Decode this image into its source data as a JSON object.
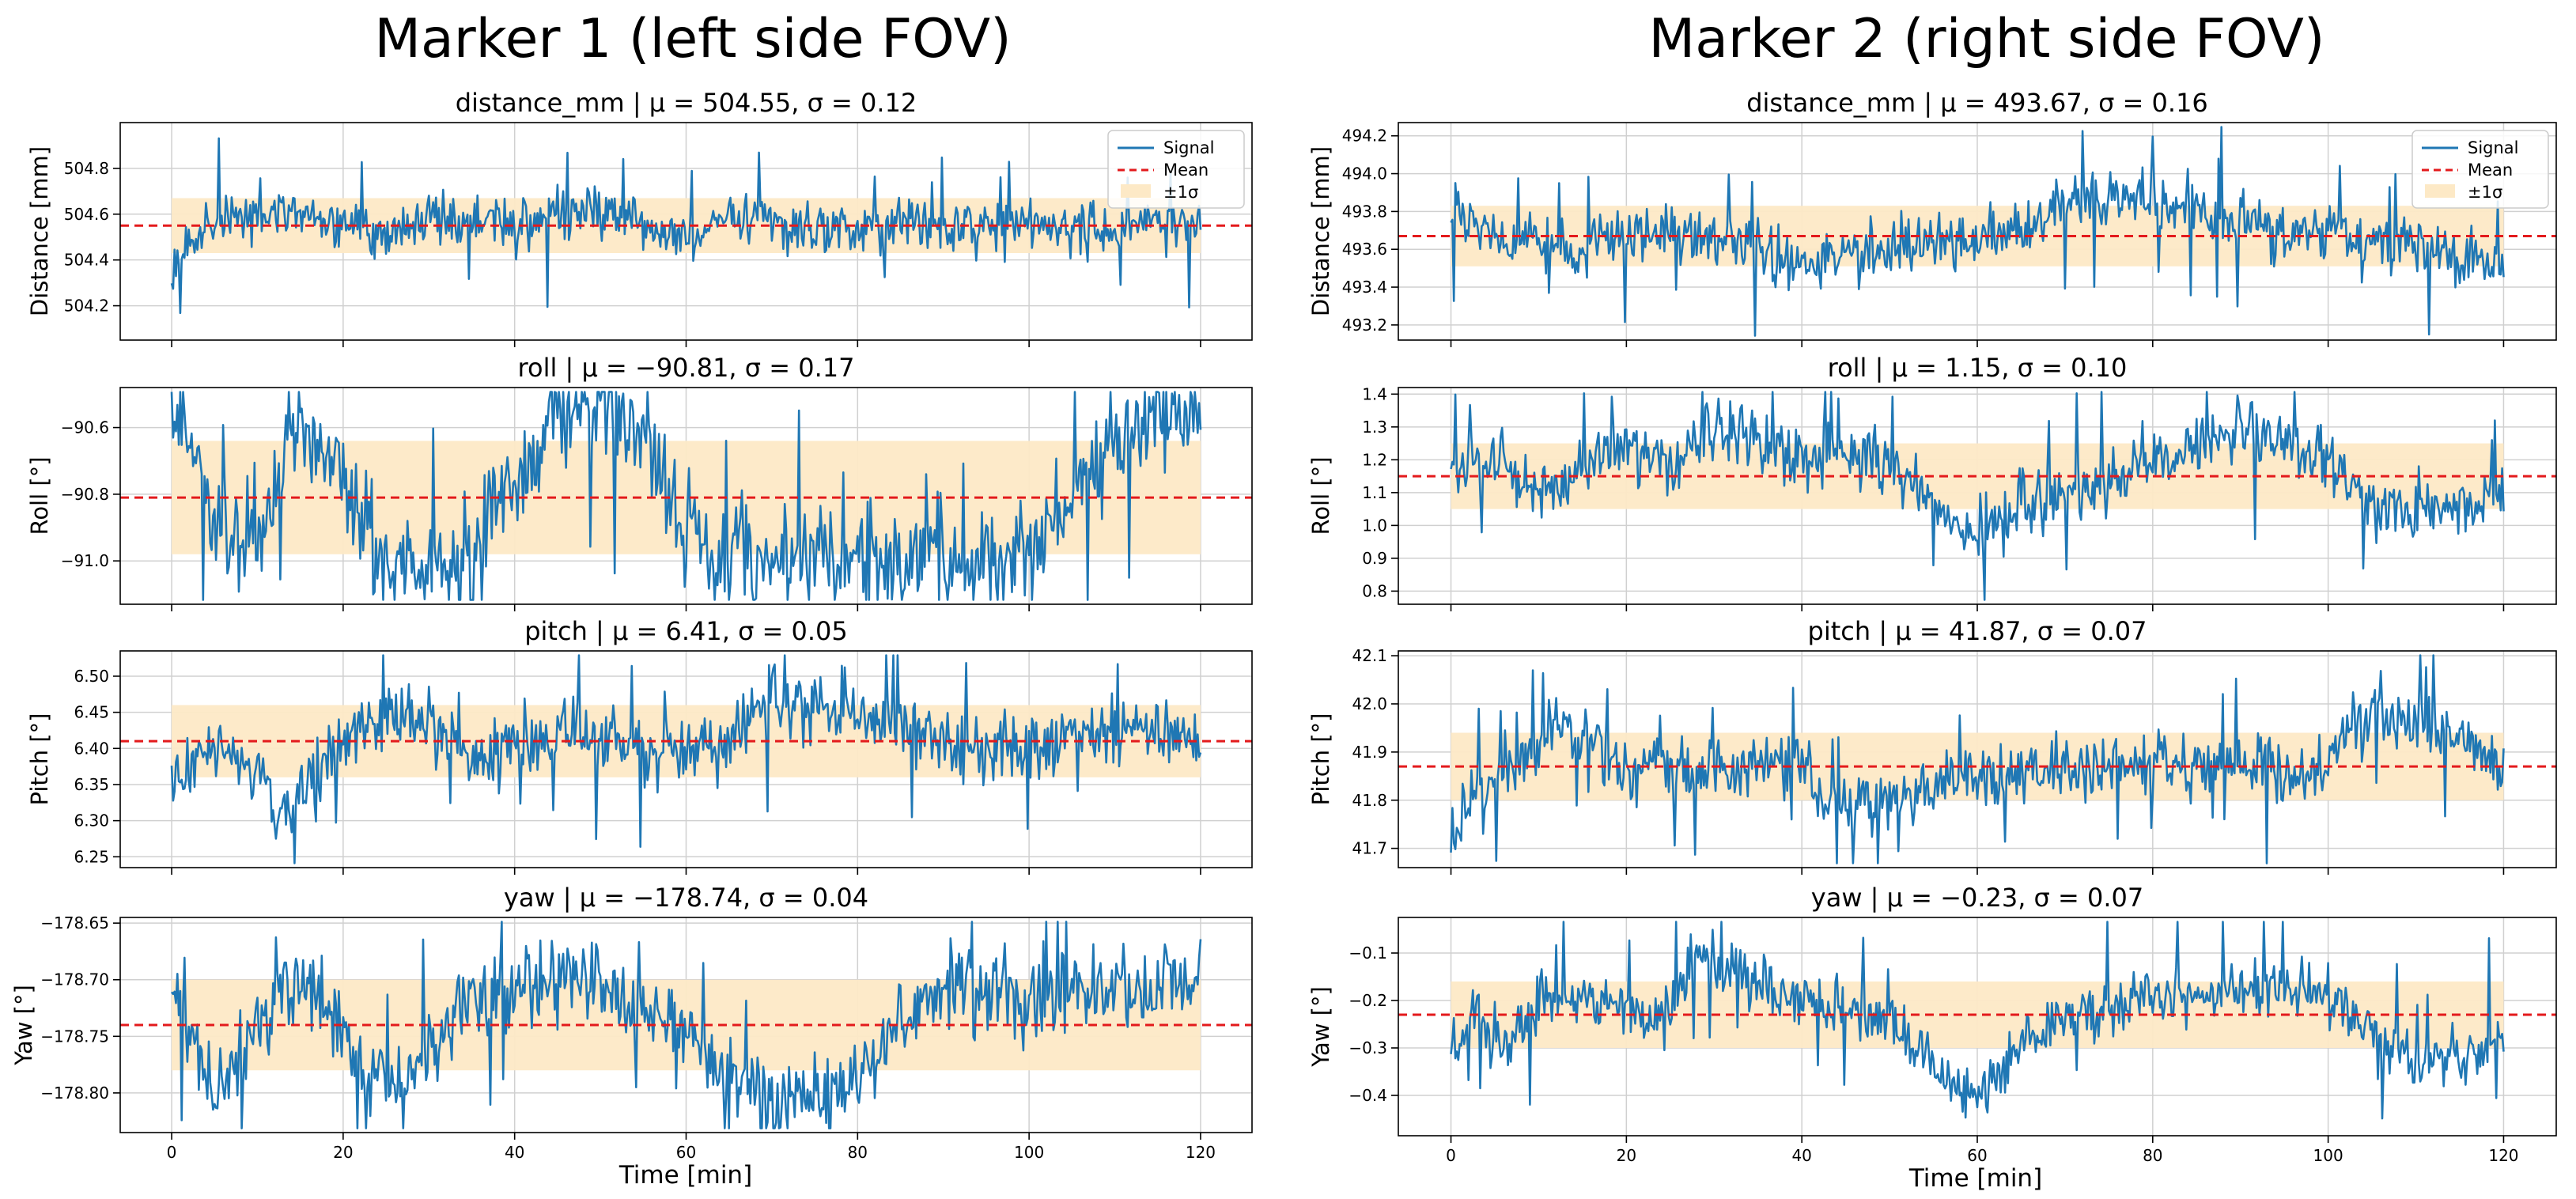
{
  "colors": {
    "signal": "#1f77b4",
    "mean": "#e31a1c",
    "band": "#fde9c6",
    "grid": "#d0d0d0"
  },
  "legend": {
    "signal": "Signal",
    "mean": "Mean",
    "band": "±1σ",
    "placement": "top-right"
  },
  "columns": [
    {
      "title": "Marker 1 (left side FOV)",
      "xlabel": "Time [min]"
    },
    {
      "title": "Marker 2 (right side FOV)",
      "xlabel": "Time [min]"
    }
  ],
  "chart_data": [
    {
      "type": "line",
      "id": "m1-distance",
      "title": "distance_mm | μ = 504.55, σ = 0.12",
      "xlabel": "Time [min]",
      "ylabel": "Distance [mm]",
      "xlim": [
        -6,
        126
      ],
      "ylim": [
        504.05,
        505.0
      ],
      "xticks": [
        0,
        20,
        40,
        60,
        80,
        100,
        120
      ],
      "yticks": [
        504.2,
        504.4,
        504.6,
        504.8
      ],
      "ytick_labels": [
        "504.2",
        "504.4",
        "504.6",
        "504.8"
      ],
      "mean": 504.55,
      "sigma": 0.12,
      "legend": true,
      "series": [
        {
          "name": "Signal",
          "x": [
            0,
            5,
            10,
            15,
            20,
            25,
            30,
            35,
            40,
            45,
            50,
            55,
            60,
            65,
            70,
            75,
            80,
            85,
            90,
            95,
            100,
            105,
            110,
            115,
            120
          ],
          "values": [
            504.4,
            504.55,
            504.6,
            504.58,
            504.55,
            504.52,
            504.58,
            504.56,
            504.55,
            504.6,
            504.62,
            504.55,
            504.5,
            504.56,
            504.57,
            504.55,
            504.53,
            504.56,
            504.54,
            504.55,
            504.57,
            504.55,
            504.54,
            504.56,
            504.52
          ]
        }
      ]
    },
    {
      "type": "line",
      "id": "m1-roll",
      "title": "roll | μ = −90.81, σ = 0.17",
      "xlabel": "Time [min]",
      "ylabel": "Roll [°]",
      "xlim": [
        -6,
        126
      ],
      "ylim": [
        -91.13,
        -90.48
      ],
      "xticks": [
        0,
        20,
        40,
        60,
        80,
        100,
        120
      ],
      "yticks": [
        -91.0,
        -90.8,
        -90.6
      ],
      "ytick_labels": [
        "−91.0",
        "−90.8",
        "−90.6"
      ],
      "mean": -90.81,
      "sigma": 0.17,
      "legend": false,
      "series": [
        {
          "name": "Signal",
          "x": [
            0,
            5,
            10,
            12,
            15,
            20,
            25,
            30,
            35,
            40,
            45,
            50,
            55,
            60,
            65,
            70,
            75,
            80,
            85,
            90,
            95,
            100,
            105,
            110,
            115,
            120
          ],
          "values": [
            -90.55,
            -90.85,
            -90.95,
            -90.8,
            -90.58,
            -90.75,
            -91.0,
            -91.02,
            -90.98,
            -90.75,
            -90.58,
            -90.52,
            -90.62,
            -90.9,
            -90.97,
            -91.0,
            -90.98,
            -91.0,
            -91.0,
            -90.98,
            -91.0,
            -90.95,
            -90.8,
            -90.65,
            -90.57,
            -90.55
          ]
        }
      ]
    },
    {
      "type": "line",
      "id": "m1-pitch",
      "title": "pitch | μ = 6.41, σ = 0.05",
      "xlabel": "Time [min]",
      "ylabel": "Pitch [°]",
      "xlim": [
        -6,
        126
      ],
      "ylim": [
        6.235,
        6.535
      ],
      "xticks": [
        0,
        20,
        40,
        60,
        80,
        100,
        120
      ],
      "yticks": [
        6.25,
        6.3,
        6.35,
        6.4,
        6.45,
        6.5
      ],
      "ytick_labels": [
        "6.25",
        "6.30",
        "6.35",
        "6.40",
        "6.45",
        "6.50"
      ],
      "mean": 6.41,
      "sigma": 0.05,
      "legend": false,
      "series": [
        {
          "name": "Signal",
          "x": [
            0,
            5,
            10,
            12,
            15,
            20,
            25,
            30,
            35,
            40,
            45,
            50,
            55,
            60,
            65,
            70,
            75,
            80,
            85,
            90,
            95,
            100,
            105,
            110,
            115,
            120
          ],
          "values": [
            6.36,
            6.4,
            6.36,
            6.3,
            6.34,
            6.4,
            6.44,
            6.43,
            6.38,
            6.4,
            6.42,
            6.41,
            6.4,
            6.4,
            6.42,
            6.47,
            6.46,
            6.45,
            6.43,
            6.41,
            6.4,
            6.41,
            6.42,
            6.43,
            6.42,
            6.4
          ]
        }
      ]
    },
    {
      "type": "line",
      "id": "m1-yaw",
      "title": "yaw | μ = −178.74, σ = 0.04",
      "xlabel": "Time [min]",
      "ylabel": "Yaw [°]",
      "xlim": [
        -6,
        126
      ],
      "ylim": [
        -178.835,
        -178.645
      ],
      "xticks": [
        0,
        20,
        40,
        60,
        80,
        100,
        120
      ],
      "yticks": [
        -178.8,
        -178.75,
        -178.7,
        -178.65
      ],
      "ytick_labels": [
        "−178.80",
        "−178.75",
        "−178.70",
        "−178.65"
      ],
      "mean": -178.74,
      "sigma": 0.04,
      "legend": false,
      "series": [
        {
          "name": "Signal",
          "x": [
            0,
            3,
            6,
            10,
            13,
            17,
            20,
            23,
            27,
            30,
            35,
            40,
            45,
            50,
            55,
            60,
            65,
            70,
            75,
            80,
            85,
            90,
            95,
            100,
            105,
            110,
            115,
            120
          ],
          "values": [
            -178.71,
            -178.76,
            -178.8,
            -178.74,
            -178.7,
            -178.71,
            -178.75,
            -178.79,
            -178.79,
            -178.76,
            -178.71,
            -178.71,
            -178.71,
            -178.7,
            -178.73,
            -178.76,
            -178.79,
            -178.81,
            -178.8,
            -178.79,
            -178.74,
            -178.71,
            -178.71,
            -178.71,
            -178.71,
            -178.71,
            -178.7,
            -178.7
          ]
        }
      ]
    },
    {
      "type": "line",
      "id": "m2-distance",
      "title": "distance_mm | μ = 493.67, σ = 0.16",
      "xlabel": "Time [min]",
      "ylabel": "Distance [mm]",
      "xlim": [
        -6,
        126
      ],
      "ylim": [
        493.12,
        494.27
      ],
      "xticks": [
        0,
        20,
        40,
        60,
        80,
        100,
        120
      ],
      "yticks": [
        493.2,
        493.4,
        493.6,
        493.8,
        494.0,
        494.2
      ],
      "ytick_labels": [
        "493.2",
        "493.4",
        "493.6",
        "493.8",
        "494.0",
        "494.2"
      ],
      "mean": 493.67,
      "sigma": 0.16,
      "legend": true,
      "series": [
        {
          "name": "Signal",
          "x": [
            0,
            5,
            10,
            15,
            20,
            25,
            30,
            35,
            40,
            45,
            50,
            55,
            60,
            65,
            70,
            75,
            80,
            85,
            90,
            95,
            100,
            105,
            110,
            115,
            120
          ],
          "values": [
            493.8,
            493.7,
            493.65,
            493.6,
            493.65,
            493.7,
            493.65,
            493.6,
            493.5,
            493.58,
            493.6,
            493.62,
            493.65,
            493.7,
            493.85,
            493.85,
            493.88,
            493.82,
            493.75,
            493.7,
            493.72,
            493.65,
            493.6,
            493.55,
            493.55
          ]
        }
      ]
    },
    {
      "type": "line",
      "id": "m2-roll",
      "title": "roll | μ = 1.15, σ = 0.10",
      "xlabel": "Time [min]",
      "ylabel": "Roll [°]",
      "xlim": [
        -6,
        126
      ],
      "ylim": [
        0.76,
        1.42
      ],
      "xticks": [
        0,
        20,
        40,
        60,
        80,
        100,
        120
      ],
      "yticks": [
        0.8,
        0.9,
        1.0,
        1.1,
        1.2,
        1.3,
        1.4
      ],
      "ytick_labels": [
        "0.8",
        "0.9",
        "1.0",
        "1.1",
        "1.2",
        "1.3",
        "1.4"
      ],
      "mean": 1.15,
      "sigma": 0.1,
      "legend": false,
      "series": [
        {
          "name": "Signal",
          "x": [
            0,
            5,
            10,
            15,
            20,
            25,
            30,
            35,
            40,
            45,
            50,
            55,
            60,
            65,
            70,
            75,
            80,
            85,
            90,
            95,
            100,
            105,
            110,
            115,
            120
          ],
          "values": [
            1.15,
            1.2,
            1.1,
            1.18,
            1.25,
            1.18,
            1.3,
            1.25,
            1.2,
            1.22,
            1.18,
            1.05,
            0.98,
            1.05,
            1.1,
            1.12,
            1.2,
            1.25,
            1.28,
            1.25,
            1.2,
            1.05,
            1.05,
            1.05,
            1.1
          ]
        }
      ]
    },
    {
      "type": "line",
      "id": "m2-pitch",
      "title": "pitch | μ = 41.87, σ = 0.07",
      "xlabel": "Time [min]",
      "ylabel": "Pitch [°]",
      "xlim": [
        -6,
        126
      ],
      "ylim": [
        41.66,
        42.11
      ],
      "xticks": [
        0,
        20,
        40,
        60,
        80,
        100,
        120
      ],
      "yticks": [
        41.7,
        41.8,
        41.9,
        42.0,
        42.1
      ],
      "ytick_labels": [
        "41.7",
        "41.8",
        "41.9",
        "42.0",
        "42.1"
      ],
      "mean": 41.87,
      "sigma": 0.07,
      "legend": false,
      "series": [
        {
          "name": "Signal",
          "x": [
            0,
            3,
            5,
            10,
            13,
            17,
            20,
            25,
            30,
            35,
            40,
            42,
            45,
            50,
            55,
            60,
            65,
            70,
            75,
            80,
            85,
            90,
            95,
            100,
            102,
            105,
            110,
            115,
            120
          ],
          "values": [
            41.7,
            41.83,
            41.85,
            41.9,
            41.97,
            41.9,
            41.86,
            41.85,
            41.86,
            41.87,
            41.88,
            41.8,
            41.78,
            41.8,
            41.83,
            41.85,
            41.86,
            41.86,
            41.87,
            41.88,
            41.87,
            41.86,
            41.85,
            41.85,
            41.95,
            41.98,
            41.97,
            41.93,
            41.85
          ]
        }
      ]
    },
    {
      "type": "line",
      "id": "m2-yaw",
      "title": "yaw | μ = −0.23, σ = 0.07",
      "xlabel": "Time [min]",
      "ylabel": "Yaw [°]",
      "xlim": [
        -6,
        126
      ],
      "ylim": [
        -0.485,
        -0.025
      ],
      "xticks": [
        0,
        20,
        40,
        60,
        80,
        100,
        120
      ],
      "yticks": [
        -0.4,
        -0.3,
        -0.2,
        -0.1
      ],
      "ytick_labels": [
        "−0.4",
        "−0.3",
        "−0.2",
        "−0.1"
      ],
      "mean": -0.23,
      "sigma": 0.07,
      "legend": false,
      "series": [
        {
          "name": "Signal",
          "x": [
            0,
            3,
            6,
            10,
            15,
            20,
            25,
            28,
            32,
            36,
            40,
            45,
            50,
            55,
            60,
            65,
            70,
            75,
            80,
            85,
            90,
            95,
            100,
            103,
            106,
            110,
            115,
            120
          ],
          "values": [
            -0.28,
            -0.22,
            -0.3,
            -0.19,
            -0.2,
            -0.22,
            -0.23,
            -0.08,
            -0.13,
            -0.17,
            -0.2,
            -0.22,
            -0.24,
            -0.34,
            -0.4,
            -0.3,
            -0.24,
            -0.22,
            -0.2,
            -0.18,
            -0.18,
            -0.17,
            -0.18,
            -0.22,
            -0.3,
            -0.32,
            -0.33,
            -0.29
          ]
        }
      ]
    }
  ]
}
